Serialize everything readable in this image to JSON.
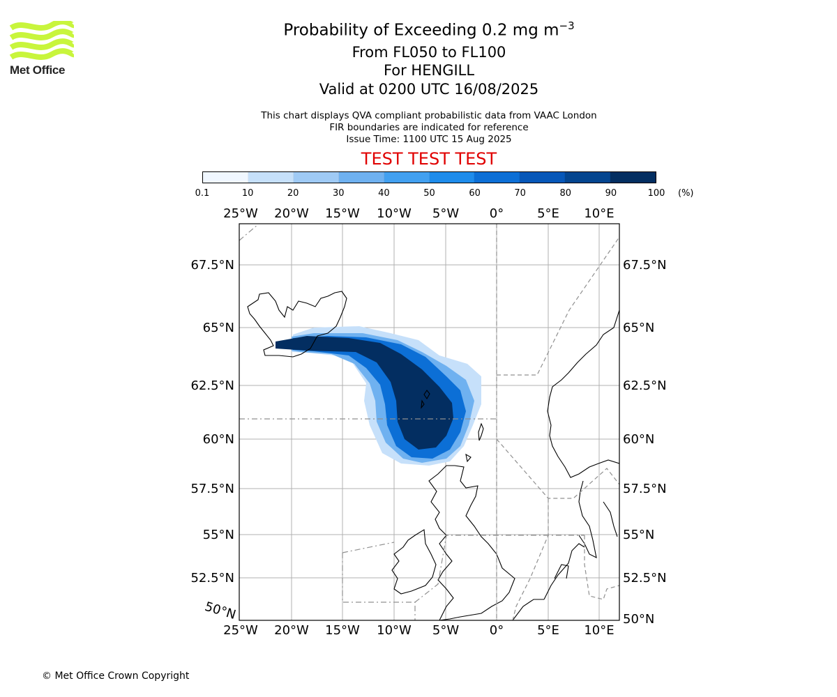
{
  "logo_text": "Met Office",
  "title": {
    "line1_prefix": "Probability of Exceeding 0.2 mg m",
    "line1_exp": "−3",
    "line2": "From FL050 to FL100",
    "line3": "For HENGILL",
    "line4": "Valid at 0200 UTC 16/08/2025"
  },
  "subtitle": {
    "line1": "This chart displays QVA compliant probabilistic data from VAAC London",
    "line2": "FIR boundaries are indicated for reference",
    "line3": "Issue Time: 1100 UTC 15 Aug 2025"
  },
  "test_banner": "TEST TEST TEST",
  "colorbar": {
    "ticks": [
      "0.1",
      "10",
      "20",
      "30",
      "40",
      "50",
      "60",
      "70",
      "80",
      "90",
      "100"
    ],
    "unit": "(%)",
    "colors": [
      "#f0f7ff",
      "#c6e0fa",
      "#9fcaf5",
      "#6fb1f0",
      "#42a0f0",
      "#1e8ceb",
      "#0c6fd6",
      "#0757b8",
      "#04458f",
      "#032e61"
    ]
  },
  "map": {
    "lon_labels": [
      "25°W",
      "20°W",
      "15°W",
      "10°W",
      "5°W",
      "0°",
      "5°E",
      "10°E"
    ],
    "lat_labels_left": [
      "67.5°N",
      "65°N",
      "62.5°N",
      "60°N",
      "57.5°N",
      "55°N",
      "52.5°N"
    ],
    "lat_labels_right": [
      "67.5°N",
      "65°N",
      "62.5°N",
      "60°N",
      "57.5°N",
      "55°N",
      "52.5°N",
      "50°N"
    ],
    "corner_label": "50°N",
    "plume_levels": [
      {
        "level_pct": 15
      },
      {
        "level_pct": 45
      },
      {
        "level_pct": 75
      },
      {
        "level_pct": 95
      }
    ]
  },
  "copyright": "© Met Office Crown Copyright"
}
